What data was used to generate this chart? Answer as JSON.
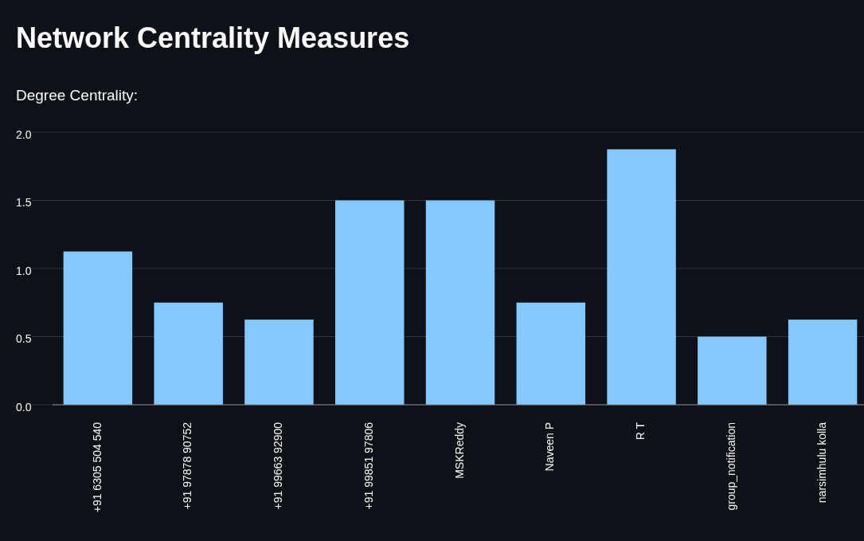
{
  "chart_data": {
    "type": "bar",
    "title": "Network Centrality Measures",
    "subtitle": "Degree Centrality:",
    "categories": [
      "+91 6305 504 540",
      "+91 97878 90752",
      "+91 99663 92900",
      "+91 99851 97806",
      "MSKReddy",
      "Naveen P",
      "R T",
      "group_notification",
      "narsimhulu kolla"
    ],
    "values": [
      1.125,
      0.75,
      0.625,
      1.5,
      1.5,
      0.75,
      1.875,
      0.5,
      0.625
    ],
    "color": "#83c9ff",
    "ylim": [
      0,
      2.0
    ],
    "yticks": [
      {
        "value": 0,
        "label": "0.0"
      },
      {
        "value": 0.5,
        "label": "0.5"
      },
      {
        "value": 1,
        "label": "1.0"
      },
      {
        "value": 1.5,
        "label": "1.5"
      },
      {
        "value": 2,
        "label": "2.0"
      }
    ],
    "grid": "y"
  }
}
